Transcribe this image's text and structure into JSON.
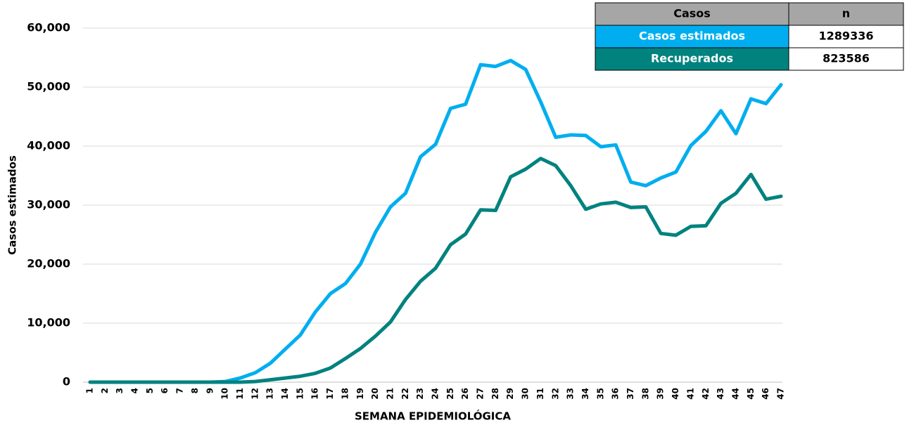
{
  "chart_data": {
    "type": "line",
    "x_label": "SEMANA EPIDEMIOLÓGICA",
    "y_label": "Casos estimados",
    "categories": [
      "1",
      "2",
      "3",
      "4",
      "5",
      "6",
      "7",
      "8",
      "9",
      "10",
      "11",
      "12",
      "13",
      "14",
      "15",
      "16",
      "17",
      "18",
      "19",
      "20",
      "21",
      "22",
      "23",
      "24",
      "25",
      "26",
      "27",
      "28",
      "29",
      "30",
      "31",
      "32",
      "33",
      "34",
      "35",
      "36",
      "37",
      "38",
      "39",
      "40",
      "41",
      "42",
      "43",
      "44",
      "45",
      "46",
      "47"
    ],
    "series": [
      {
        "name": "Casos estimados",
        "color": "#00aeef",
        "values": [
          0,
          0,
          0,
          0,
          0,
          0,
          0,
          0,
          0,
          100,
          700,
          1600,
          3200,
          5600,
          8000,
          11900,
          15000,
          16700,
          20000,
          25400,
          29700,
          32000,
          38200,
          40300,
          46400,
          47100,
          53800,
          53500,
          54500,
          53000,
          47500,
          41500,
          41900,
          41800,
          39900,
          40200,
          33900,
          33300,
          34600,
          35600,
          40100,
          42500,
          46000,
          42100,
          48000,
          47200,
          50400
        ]
      },
      {
        "name": "Recuperados",
        "color": "#00827f",
        "values": [
          0,
          0,
          0,
          0,
          0,
          0,
          0,
          0,
          0,
          0,
          0,
          100,
          400,
          700,
          1000,
          1500,
          2400,
          4000,
          5700,
          7800,
          10200,
          14000,
          17100,
          19300,
          23300,
          25100,
          29200,
          29100,
          34800,
          36100,
          37900,
          36700,
          33300,
          29300,
          30200,
          30500,
          29600,
          29700,
          25200,
          24900,
          26400,
          26500,
          30300,
          32000,
          35200,
          31000,
          31500
        ]
      }
    ],
    "ylim": [
      0,
      60000
    ],
    "yticks": [
      0,
      {
        "value": 10000,
        "label": "10,000"
      },
      {
        "value": 20000,
        "label": "20,000"
      },
      {
        "value": 30000,
        "label": "30,000"
      },
      {
        "value": 40000,
        "label": "40,000"
      },
      {
        "value": 50000,
        "label": "50,000"
      },
      {
        "value": 60000,
        "label": "60,000"
      }
    ],
    "grid": true,
    "table": {
      "header": [
        "Casos",
        "n"
      ],
      "header_color": "#a6a6a6",
      "rows": [
        [
          "Casos estimados",
          1289336
        ],
        [
          "Recuperados",
          823586
        ]
      ]
    }
  }
}
